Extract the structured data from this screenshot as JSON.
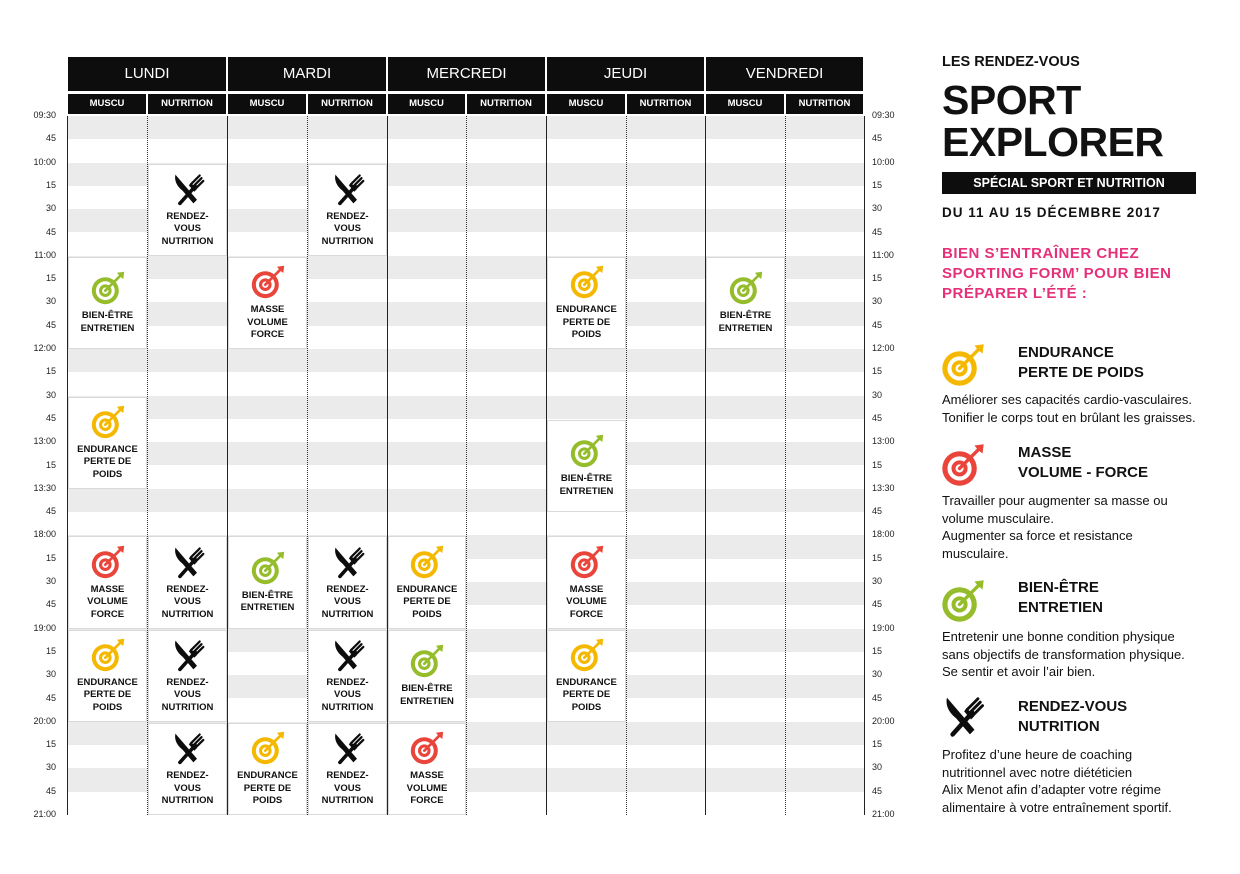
{
  "schedule": {
    "days": [
      "LUNDI",
      "MARDI",
      "MERCREDI",
      "JEUDI",
      "VENDREDI"
    ],
    "sub_columns": [
      "MUSCU",
      "NUTRITION"
    ],
    "time_labels": [
      "09:30",
      "45",
      "10:00",
      "15",
      "30",
      "45",
      "11:00",
      "15",
      "30",
      "45",
      "12:00",
      "15",
      "30",
      "45",
      "13:00",
      "15",
      "13:30",
      "45",
      "18:00",
      "15",
      "30",
      "45",
      "19:00",
      "15",
      "30",
      "45",
      "20:00",
      "15",
      "30",
      "45",
      "21:00"
    ],
    "blocks": [
      {
        "col": 1,
        "start": 2,
        "end": 6,
        "type": "nutrition"
      },
      {
        "col": 3,
        "start": 2,
        "end": 6,
        "type": "nutrition"
      },
      {
        "col": 0,
        "start": 6,
        "end": 10,
        "type": "bienetre"
      },
      {
        "col": 2,
        "start": 6,
        "end": 10,
        "type": "masse"
      },
      {
        "col": 6,
        "start": 6,
        "end": 10,
        "type": "endurance"
      },
      {
        "col": 8,
        "start": 6,
        "end": 10,
        "type": "bienetre"
      },
      {
        "col": 0,
        "start": 12,
        "end": 16,
        "type": "endurance"
      },
      {
        "col": 6,
        "start": 13,
        "end": 17,
        "type": "bienetre"
      },
      {
        "col": 0,
        "start": 18,
        "end": 22,
        "type": "masse"
      },
      {
        "col": 1,
        "start": 18,
        "end": 22,
        "type": "nutrition"
      },
      {
        "col": 2,
        "start": 18,
        "end": 22,
        "type": "bienetre"
      },
      {
        "col": 3,
        "start": 18,
        "end": 22,
        "type": "nutrition"
      },
      {
        "col": 4,
        "start": 18,
        "end": 22,
        "type": "endurance"
      },
      {
        "col": 6,
        "start": 18,
        "end": 22,
        "type": "masse"
      },
      {
        "col": 0,
        "start": 22,
        "end": 26,
        "type": "endurance"
      },
      {
        "col": 1,
        "start": 22,
        "end": 26,
        "type": "nutrition"
      },
      {
        "col": 3,
        "start": 22,
        "end": 26,
        "type": "nutrition"
      },
      {
        "col": 4,
        "start": 22,
        "end": 26,
        "type": "bienetre"
      },
      {
        "col": 6,
        "start": 22,
        "end": 26,
        "type": "endurance"
      },
      {
        "col": 1,
        "start": 26,
        "end": 30,
        "type": "nutrition"
      },
      {
        "col": 2,
        "start": 26,
        "end": 30,
        "type": "endurance"
      },
      {
        "col": 3,
        "start": 26,
        "end": 30,
        "type": "nutrition"
      },
      {
        "col": 4,
        "start": 26,
        "end": 30,
        "type": "masse"
      }
    ],
    "types": {
      "endurance": {
        "label": [
          "ENDURANCE",
          "PERTE DE",
          "POIDS"
        ],
        "icon": "target-icon",
        "color": "#f5b800"
      },
      "masse": {
        "label": [
          "MASSE",
          "VOLUME",
          "FORCE"
        ],
        "icon": "target-icon",
        "color": "#e9453b"
      },
      "bienetre": {
        "label": [
          "BIEN-ÊTRE",
          "ENTRETIEN"
        ],
        "icon": "target-icon",
        "color": "#95bd2b"
      },
      "nutrition": {
        "label": [
          "RENDEZ-",
          "VOUS",
          "NUTRITION"
        ],
        "icon": "fork-knife-icon",
        "color": "#0d0d0d"
      }
    }
  },
  "header": {
    "subtitle": "LES RENDEZ-VOUS",
    "title_line1": "SPORT",
    "title_line2": "EXPLORER",
    "banner": "SPÉCIAL SPORT ET NUTRITION",
    "dates": "DU 11 AU 15 DÉCEMBRE 2017",
    "tagline": [
      "BIEN S’ENTRAÎNER CHEZ",
      "SPORTING FORM’ POUR BIEN",
      "PRÉPARER L’ÉTÉ :"
    ]
  },
  "legend": [
    {
      "type": "endurance",
      "title": [
        "ENDURANCE",
        "PERTE DE POIDS"
      ],
      "desc": [
        "Améliorer ses capacités cardio-vasculaires.",
        "Tonifier le corps tout en brûlant les graisses."
      ]
    },
    {
      "type": "masse",
      "title": [
        "MASSE",
        "VOLUME - FORCE"
      ],
      "desc": [
        "Travailler pour augmenter sa masse ou",
        "volume musculaire.",
        "Augmenter sa force et resistance",
        "musculaire."
      ]
    },
    {
      "type": "bienetre",
      "title": [
        "BIEN-ÊTRE",
        "ENTRETIEN"
      ],
      "desc": [
        "Entretenir une bonne condition physique",
        "sans objectifs de transformation physique.",
        "Se sentir et avoir l’air bien."
      ]
    },
    {
      "type": "nutrition",
      "title": [
        "RENDEZ-VOUS",
        "NUTRITION"
      ],
      "desc": [
        "Profitez d’une heure de coaching",
        "nutritionnel avec notre diététicien",
        "Alix Menot afin d’adapter votre régime",
        "alimentaire à votre entraînement sportif."
      ]
    }
  ],
  "colors": {
    "endurance": "#f5b800",
    "masse": "#e9453b",
    "bienetre": "#95bd2b",
    "accent": "#e5307a",
    "header_bg": "#0d0d0d"
  }
}
